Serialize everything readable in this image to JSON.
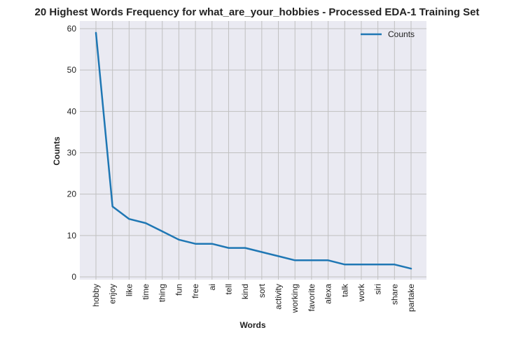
{
  "chart_data": {
    "type": "line",
    "title": "20 Highest Words Frequency for what_are_your_hobbies - Processed EDA-1 Training Set",
    "xlabel": "Words",
    "ylabel": "Counts",
    "categories": [
      "hobby",
      "enjoy",
      "like",
      "time",
      "thing",
      "fun",
      "free",
      "ai",
      "tell",
      "kind",
      "sort",
      "activity",
      "working",
      "favorite",
      "alexa",
      "talk",
      "work",
      "siri",
      "share",
      "partake"
    ],
    "series": [
      {
        "name": "Counts",
        "values": [
          59,
          17,
          14,
          13,
          11,
          9,
          8,
          8,
          7,
          7,
          6,
          5,
          4,
          4,
          4,
          3,
          3,
          3,
          3,
          2
        ],
        "color": "#1f77b4"
      }
    ],
    "ylim": [
      0,
      60
    ],
    "yticks": [
      0,
      10,
      20,
      30,
      40,
      50,
      60
    ],
    "grid": true,
    "legend": "upper right",
    "background": "#eaeaf2",
    "grid_color": "#c0c0c0"
  }
}
